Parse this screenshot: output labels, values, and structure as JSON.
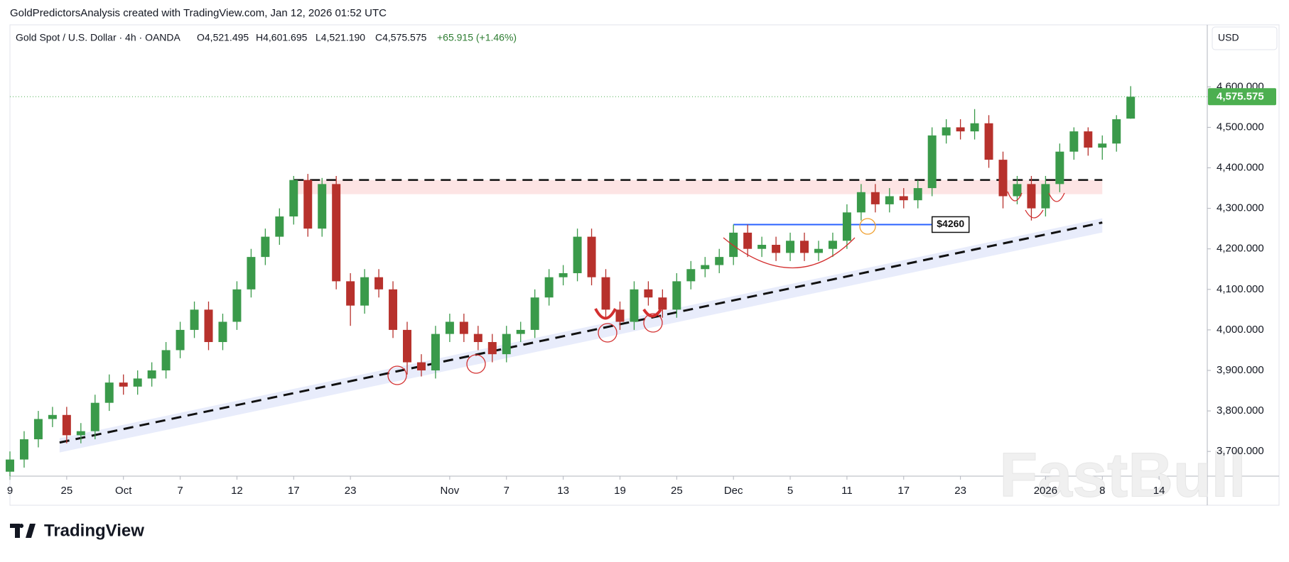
{
  "header": {
    "credit": "GoldPredictorsAnalysis created with TradingView.com, Jan 12, 2026 01:52 UTC",
    "symbol": "Gold Spot / U.S. Dollar · 4h · OANDA",
    "ohlc": [
      "O4,521.495",
      "H4,601.695",
      "L4,521.190",
      "C4,575.575"
    ],
    "change": "+65.915 (+1.46%)",
    "currency": "USD"
  },
  "chart_data": {
    "type": "candlestick",
    "open": [
      3650,
      3680,
      3730,
      3780,
      3790,
      3740,
      3750,
      3820,
      3870,
      3860,
      3880,
      3900,
      3950,
      4000,
      4050,
      3970,
      4020,
      4100,
      4180,
      4230,
      4280,
      4370,
      4250,
      4360,
      4120,
      4060,
      4130,
      4100,
      4000,
      3920,
      3900,
      3990,
      4020,
      3990,
      3970,
      3940,
      3990,
      4000,
      4080,
      4130,
      4140,
      4230,
      4130,
      4050,
      4020,
      4100,
      4080,
      4050,
      4120,
      4150,
      4160,
      4180,
      4240,
      4200,
      4210,
      4190,
      4220,
      4190,
      4200,
      4220,
      4290,
      4340,
      4310,
      4330,
      4320,
      4350,
      4480,
      4500,
      4490,
      4510,
      4420,
      4330,
      4360,
      4300,
      4360,
      4440,
      4490,
      4450,
      4460,
      4521.495
    ],
    "high": [
      3700,
      3750,
      3800,
      3810,
      3810,
      3770,
      3840,
      3890,
      3890,
      3900,
      3920,
      3970,
      4020,
      4070,
      4070,
      4040,
      4120,
      4200,
      4250,
      4300,
      4380,
      4385,
      4375,
      4380,
      4140,
      4150,
      4150,
      4120,
      4020,
      3940,
      4010,
      4040,
      4040,
      4010,
      3990,
      4010,
      4020,
      4100,
      4150,
      4160,
      4250,
      4250,
      4150,
      4070,
      4120,
      4120,
      4100,
      4140,
      4170,
      4180,
      4200,
      4260,
      4260,
      4230,
      4230,
      4240,
      4240,
      4220,
      4240,
      4310,
      4360,
      4360,
      4350,
      4350,
      4370,
      4500,
      4520,
      4520,
      4545,
      4530,
      4440,
      4380,
      4380,
      4380,
      4460,
      4500,
      4500,
      4480,
      4530,
      4601.695
    ],
    "low": [
      3630,
      3660,
      3710,
      3760,
      3720,
      3720,
      3730,
      3800,
      3840,
      3840,
      3860,
      3880,
      3930,
      3980,
      3950,
      3950,
      4000,
      4080,
      4160,
      4210,
      4260,
      4230,
      4230,
      4100,
      4010,
      4040,
      4080,
      3980,
      3890,
      3885,
      3880,
      3970,
      3970,
      3950,
      3920,
      3920,
      3970,
      3980,
      4060,
      4110,
      4120,
      4110,
      4030,
      4000,
      4000,
      4060,
      4030,
      4030,
      4100,
      4130,
      4140,
      4160,
      4180,
      4180,
      4170,
      4170,
      4170,
      4170,
      4180,
      4200,
      4270,
      4290,
      4290,
      4300,
      4300,
      4330,
      4460,
      4470,
      4470,
      4400,
      4300,
      4310,
      4270,
      4280,
      4340,
      4420,
      4430,
      4420,
      4440,
      4521.19
    ],
    "close": [
      3680,
      3730,
      3780,
      3790,
      3740,
      3750,
      3820,
      3870,
      3860,
      3880,
      3900,
      3950,
      4000,
      4050,
      3970,
      4020,
      4100,
      4180,
      4230,
      4280,
      4370,
      4250,
      4360,
      4120,
      4060,
      4130,
      4100,
      4000,
      3920,
      3900,
      3990,
      4020,
      3990,
      3970,
      3940,
      3990,
      4000,
      4080,
      4130,
      4140,
      4230,
      4130,
      4050,
      4020,
      4100,
      4080,
      4050,
      4120,
      4150,
      4160,
      4180,
      4240,
      4200,
      4210,
      4190,
      4220,
      4190,
      4200,
      4220,
      4290,
      4340,
      4310,
      4330,
      4320,
      4350,
      4480,
      4500,
      4490,
      4510,
      4420,
      4330,
      4360,
      4300,
      4360,
      4440,
      4490,
      4450,
      4460,
      4520,
      4575.575
    ],
    "up_color": "#3a9a4a",
    "down_color": "#b7312c",
    "xlim": [
      0,
      84.4
    ],
    "xticks": [
      {
        "value": 0,
        "label": "9"
      },
      {
        "value": 4,
        "label": "25"
      },
      {
        "value": 8,
        "label": "Oct"
      },
      {
        "value": 12,
        "label": "7"
      },
      {
        "value": 16,
        "label": "12"
      },
      {
        "value": 20,
        "label": "17"
      },
      {
        "value": 24,
        "label": "23"
      },
      {
        "value": 31,
        "label": "Nov"
      },
      {
        "value": 35,
        "label": "7"
      },
      {
        "value": 39,
        "label": "13"
      },
      {
        "value": 43,
        "label": "19"
      },
      {
        "value": 47,
        "label": "25"
      },
      {
        "value": 51,
        "label": "Dec"
      },
      {
        "value": 55,
        "label": "5"
      },
      {
        "value": 59,
        "label": "11"
      },
      {
        "value": 63,
        "label": "17"
      },
      {
        "value": 67,
        "label": "23"
      },
      {
        "value": 73,
        "label": "2026"
      },
      {
        "value": 77,
        "label": "8"
      },
      {
        "value": 81,
        "label": "14"
      }
    ],
    "ylim": [
      3639,
      4753
    ],
    "yticks": [
      {
        "value": 3700,
        "label": "3,700.000"
      },
      {
        "value": 3800,
        "label": "3,800.000"
      },
      {
        "value": 3900,
        "label": "3,900.000"
      },
      {
        "value": 4000,
        "label": "4,000.000"
      },
      {
        "value": 4100,
        "label": "4,100.000"
      },
      {
        "value": 4200,
        "label": "4,200.000"
      },
      {
        "value": 4300,
        "label": "4,300.000"
      },
      {
        "value": 4400,
        "label": "4,400.000"
      },
      {
        "value": 4500,
        "label": "4,500.000"
      },
      {
        "value": 4600,
        "label": "4,600.000"
      }
    ],
    "grid": false,
    "last_price": {
      "value": 4575.575,
      "label": "4,575.575",
      "color": "#4caf50"
    },
    "resistance": {
      "value": 4370,
      "from": 20,
      "zone": [
        4335,
        4370
      ]
    },
    "trendline": {
      "x": [
        3.5,
        77
      ],
      "y": [
        3722,
        4265
      ]
    },
    "breakout": {
      "value": 4260,
      "label": "$4260",
      "x": [
        51,
        64
      ],
      "color": "#2962ff"
    }
  },
  "footer": {
    "brand": "TradingView",
    "watermark": "FastBull"
  }
}
